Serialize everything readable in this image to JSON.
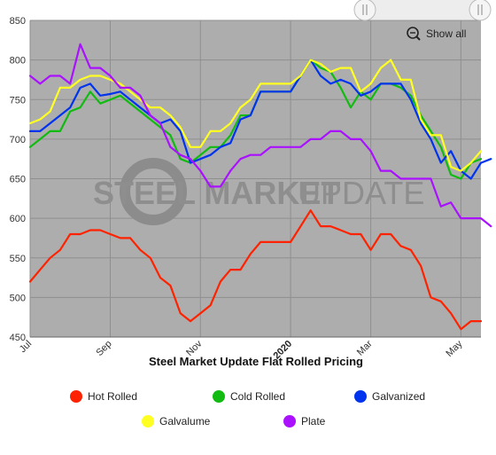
{
  "watermark": {
    "bold": "STEEL MARKET",
    "light": "UPDATE"
  },
  "zoom": {
    "show_all_label": "Show all"
  },
  "chart_data": {
    "type": "line",
    "title": "Steel Market Update Flat Rolled Pricing",
    "xlabel": "",
    "ylabel": "",
    "ylim": [
      450,
      850
    ],
    "yticks": [
      450,
      500,
      550,
      600,
      650,
      700,
      750,
      800,
      850
    ],
    "grid": true,
    "legend_position": "bottom",
    "x_ticks": [
      {
        "label": "Jul",
        "index": 0,
        "bold": false
      },
      {
        "label": "Sep",
        "index": 8,
        "bold": false
      },
      {
        "label": "Nov",
        "index": 17,
        "bold": false
      },
      {
        "label": "2020",
        "index": 26,
        "bold": true
      },
      {
        "label": "Mar",
        "index": 34,
        "bold": false
      },
      {
        "label": "May",
        "index": 43,
        "bold": false
      }
    ],
    "series": [
      {
        "name": "Hot Rolled",
        "color": "#ff2200",
        "values": [
          520,
          535,
          550,
          560,
          580,
          580,
          585,
          585,
          580,
          575,
          575,
          560,
          550,
          525,
          515,
          480,
          470,
          480,
          490,
          520,
          535,
          535,
          555,
          570,
          570,
          570,
          570,
          590,
          610,
          590,
          590,
          585,
          580,
          580,
          560,
          580,
          580,
          565,
          560,
          540,
          500,
          495,
          480,
          460,
          470,
          470
        ]
      },
      {
        "name": "Cold Rolled",
        "color": "#11bb11",
        "values": [
          690,
          700,
          710,
          710,
          735,
          740,
          760,
          745,
          750,
          755,
          745,
          735,
          725,
          715,
          705,
          675,
          670,
          680,
          690,
          690,
          705,
          730,
          730,
          760,
          760,
          760,
          760,
          780,
          800,
          790,
          785,
          765,
          740,
          760,
          750,
          770,
          770,
          765,
          755,
          730,
          710,
          690,
          655,
          650,
          670,
          675
        ]
      },
      {
        "name": "Galvanized",
        "color": "#0033ee",
        "values": [
          710,
          710,
          720,
          730,
          740,
          765,
          770,
          755,
          757,
          760,
          750,
          740,
          730,
          720,
          725,
          710,
          670,
          675,
          680,
          690,
          695,
          725,
          730,
          760,
          760,
          760,
          760,
          780,
          800,
          780,
          770,
          775,
          770,
          755,
          760,
          770,
          770,
          770,
          750,
          720,
          700,
          670,
          685,
          660,
          650,
          670,
          675
        ]
      },
      {
        "name": "Galvalume",
        "color": "#ffff22",
        "values": [
          720,
          725,
          735,
          765,
          765,
          775,
          780,
          780,
          775,
          770,
          760,
          750,
          740,
          740,
          730,
          715,
          690,
          690,
          710,
          710,
          720,
          740,
          750,
          770,
          770,
          770,
          770,
          780,
          800,
          795,
          785,
          790,
          790,
          760,
          770,
          790,
          800,
          775,
          775,
          725,
          705,
          705,
          665,
          660,
          670,
          685
        ]
      },
      {
        "name": "Plate",
        "color": "#aa11ff",
        "values": [
          780,
          770,
          780,
          780,
          770,
          820,
          790,
          790,
          780,
          765,
          765,
          755,
          730,
          720,
          690,
          680,
          675,
          660,
          640,
          640,
          660,
          675,
          680,
          680,
          690,
          690,
          690,
          690,
          700,
          700,
          710,
          710,
          700,
          700,
          685,
          660,
          660,
          650,
          650,
          650,
          650,
          615,
          620,
          600,
          600,
          600,
          590
        ]
      }
    ]
  }
}
